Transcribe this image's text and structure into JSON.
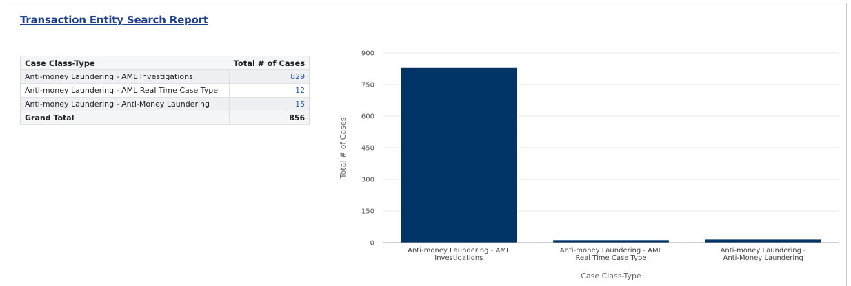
{
  "report": {
    "title": "Transaction Entity Search Report"
  },
  "table": {
    "headers": [
      "Case Class-Type",
      "Total # of Cases"
    ],
    "rows": [
      {
        "label": "Anti-money Laundering - AML Investigations",
        "value": "829"
      },
      {
        "label": "Anti-money Laundering - AML Real Time Case Type",
        "value": "12"
      },
      {
        "label": "Anti-money Laundering - Anti-Money Laundering",
        "value": "15"
      }
    ],
    "total": {
      "label": "Grand Total",
      "value": "856"
    }
  },
  "colors": {
    "bar": "#003366",
    "link_value": "#2a5db0",
    "title": "#1f3f8f"
  },
  "chart_data": {
    "type": "bar",
    "categories": [
      [
        "Anti-money Laundering - AML",
        "Investigations"
      ],
      [
        "Anti-money Laundering - AML",
        "Real Time Case Type"
      ],
      [
        "Anti-money Laundering -",
        "Anti-Money Laundering"
      ]
    ],
    "values": [
      829,
      12,
      15
    ],
    "title": "",
    "xlabel": "Case Class-Type",
    "ylabel": "Total # of Cases",
    "ylim": [
      0,
      900
    ],
    "yticks": [
      0,
      150,
      300,
      450,
      600,
      750,
      900
    ],
    "grid": true,
    "legend": "none"
  }
}
